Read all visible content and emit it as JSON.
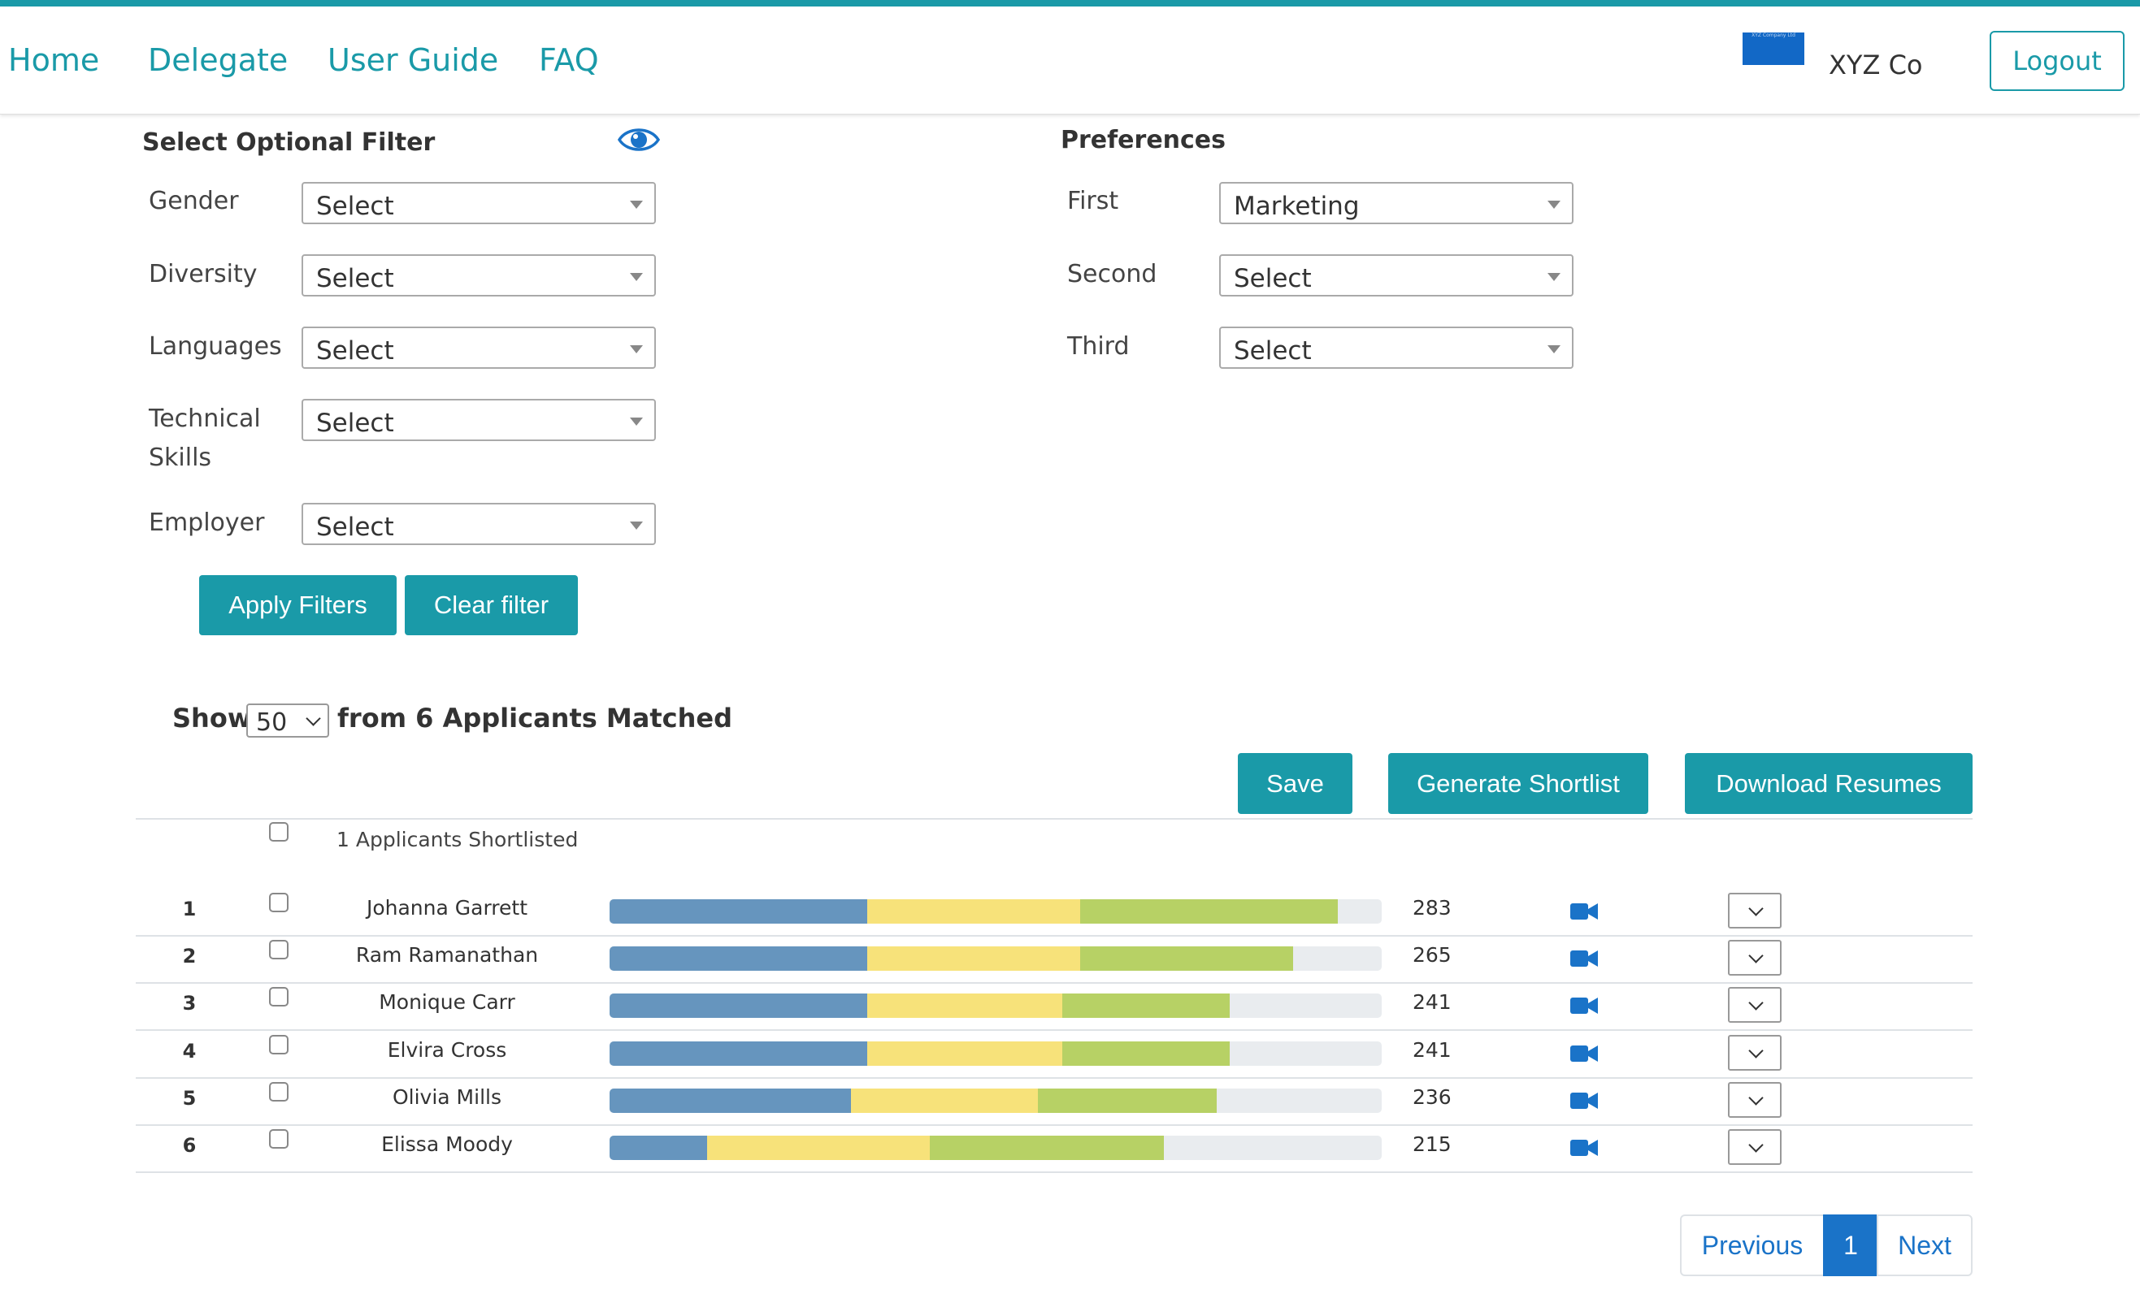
{
  "nav": {
    "links": [
      "Home",
      "Delegate",
      "User Guide",
      "FAQ"
    ],
    "logo_text": "XYZ Company Ltd",
    "company": "XYZ Co",
    "logout": "Logout"
  },
  "filters": {
    "title": "Select Optional Filter",
    "fields": [
      {
        "label": "Gender",
        "value": "Select"
      },
      {
        "label": "Diversity",
        "value": "Select"
      },
      {
        "label": "Languages",
        "value": "Select"
      },
      {
        "label": "Technical Skills",
        "value": "Select"
      },
      {
        "label": "Employer",
        "value": "Select"
      }
    ],
    "apply": "Apply Filters",
    "clear": "Clear filter"
  },
  "preferences": {
    "title": "Preferences",
    "fields": [
      {
        "label": "First",
        "value": "Marketing"
      },
      {
        "label": "Second",
        "value": "Select"
      },
      {
        "label": "Third",
        "value": "Select"
      }
    ]
  },
  "results": {
    "show_label": "Show",
    "show_value": "50",
    "matched_text": "from 6 Applicants Matched",
    "save": "Save",
    "generate": "Generate Shortlist",
    "download": "Download Resumes",
    "shortlisted_text": "1 Applicants Shortlisted",
    "applicants": [
      {
        "num": "1",
        "name": "Johanna Garrett",
        "score": "283"
      },
      {
        "num": "2",
        "name": "Ram Ramanathan",
        "score": "265"
      },
      {
        "num": "3",
        "name": "Monique Carr",
        "score": "241"
      },
      {
        "num": "4",
        "name": "Elvira Cross",
        "score": "241"
      },
      {
        "num": "5",
        "name": "Olivia Mills",
        "score": "236"
      },
      {
        "num": "6",
        "name": "Elissa Moody",
        "score": "215"
      }
    ],
    "score_bars": [
      [
        0.334,
        0.276,
        0.334
      ],
      [
        0.334,
        0.276,
        0.276
      ],
      [
        0.334,
        0.253,
        0.217
      ],
      [
        0.334,
        0.253,
        0.217
      ],
      [
        0.313,
        0.242,
        0.232
      ],
      [
        0.126,
        0.288,
        0.303
      ]
    ],
    "bar_colors": [
      "#6695be",
      "#f7e27a",
      "#b7d165"
    ]
  },
  "pagination": {
    "previous": "Previous",
    "current": "1",
    "next": "Next"
  },
  "colors": {
    "accent": "#1a9aa8",
    "link_blue": "#1a73c8"
  }
}
